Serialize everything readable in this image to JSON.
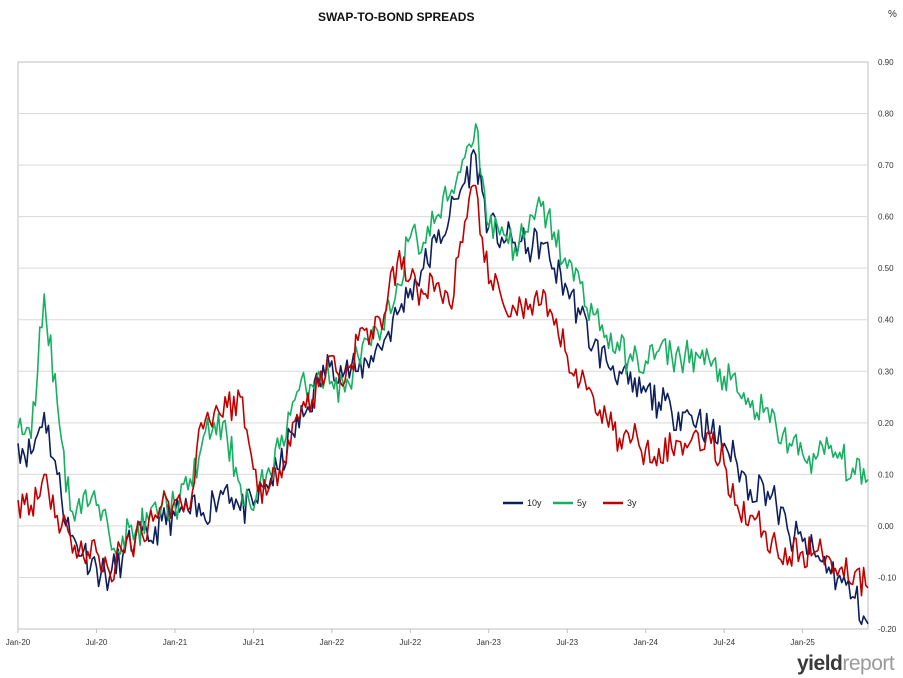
{
  "chart_data": {
    "type": "line",
    "title": "SWAP-TO-BOND SPREADS",
    "unit": "%",
    "y_axis_side": "right",
    "ylim": [
      -0.2,
      0.9
    ],
    "y_ticks": [
      "0.90",
      "0.80",
      "0.70",
      "0.60",
      "0.50",
      "0.40",
      "0.30",
      "0.20",
      "0.10",
      "0.00",
      "-0.10",
      "-0.20"
    ],
    "x_ticks": [
      "Jan-20",
      "Jul-20",
      "Jan-21",
      "Jul-21",
      "Jan-22",
      "Jul-22",
      "Jan-23",
      "Jul-23",
      "Jan-24",
      "Jul-24",
      "Jan-25"
    ],
    "xlim": [
      "2020-01",
      "2025-06"
    ],
    "grid": "horizontal",
    "legend_position": "center",
    "x": [
      "2020-01",
      "2020-02",
      "2020-03",
      "2020-04",
      "2020-05",
      "2020-06",
      "2020-07",
      "2020-08",
      "2020-09",
      "2020-10",
      "2020-11",
      "2020-12",
      "2021-01",
      "2021-02",
      "2021-03",
      "2021-04",
      "2021-05",
      "2021-06",
      "2021-07",
      "2021-08",
      "2021-09",
      "2021-10",
      "2021-11",
      "2021-12",
      "2022-01",
      "2022-02",
      "2022-03",
      "2022-04",
      "2022-05",
      "2022-06",
      "2022-07",
      "2022-08",
      "2022-09",
      "2022-10",
      "2022-11",
      "2022-12",
      "2023-01",
      "2023-02",
      "2023-03",
      "2023-04",
      "2023-05",
      "2023-06",
      "2023-07",
      "2023-08",
      "2023-09",
      "2023-10",
      "2023-11",
      "2023-12",
      "2024-01",
      "2024-02",
      "2024-03",
      "2024-04",
      "2024-05",
      "2024-06",
      "2024-07",
      "2024-08",
      "2024-09",
      "2024-10",
      "2024-11",
      "2024-12",
      "2025-01",
      "2025-02",
      "2025-03",
      "2025-04",
      "2025-05",
      "2025-06"
    ],
    "series": [
      {
        "name": "10y",
        "color": "#0d1f5c",
        "values": [
          0.16,
          0.14,
          0.22,
          0.1,
          -0.02,
          -0.05,
          -0.08,
          -0.1,
          -0.06,
          -0.02,
          -0.03,
          0.01,
          0.02,
          0.03,
          0.02,
          0.05,
          0.08,
          0.03,
          0.04,
          0.08,
          0.11,
          0.18,
          0.22,
          0.28,
          0.32,
          0.3,
          0.3,
          0.33,
          0.36,
          0.41,
          0.46,
          0.5,
          0.55,
          0.6,
          0.66,
          0.72,
          0.58,
          0.56,
          0.55,
          0.54,
          0.55,
          0.5,
          0.46,
          0.41,
          0.35,
          0.32,
          0.3,
          0.26,
          0.26,
          0.24,
          0.22,
          0.22,
          0.21,
          0.18,
          0.16,
          0.12,
          0.07,
          0.08,
          0.04,
          -0.02,
          -0.03,
          -0.06,
          -0.08,
          -0.11,
          -0.14,
          -0.19
        ]
      },
      {
        "name": "5y",
        "color": "#17b061",
        "values": [
          0.19,
          0.17,
          0.45,
          0.24,
          0.03,
          0.06,
          0.04,
          -0.02,
          -0.02,
          -0.01,
          0.01,
          0.04,
          0.04,
          0.07,
          0.15,
          0.2,
          0.17,
          0.08,
          0.03,
          0.1,
          0.15,
          0.24,
          0.27,
          0.3,
          0.28,
          0.26,
          0.33,
          0.35,
          0.38,
          0.47,
          0.56,
          0.55,
          0.6,
          0.64,
          0.71,
          0.78,
          0.58,
          0.58,
          0.54,
          0.57,
          0.62,
          0.57,
          0.5,
          0.47,
          0.41,
          0.37,
          0.34,
          0.32,
          0.32,
          0.34,
          0.33,
          0.33,
          0.33,
          0.31,
          0.29,
          0.26,
          0.23,
          0.22,
          0.19,
          0.16,
          0.14,
          0.13,
          0.15,
          0.13,
          0.1,
          0.09
        ]
      },
      {
        "name": "3y",
        "color": "#c00000",
        "values": [
          0.05,
          0.04,
          0.1,
          0.02,
          -0.02,
          -0.06,
          -0.05,
          -0.09,
          -0.05,
          -0.02,
          0.01,
          0.04,
          0.05,
          0.03,
          0.2,
          0.22,
          0.23,
          0.25,
          0.11,
          0.06,
          0.11,
          0.2,
          0.23,
          0.27,
          0.33,
          0.28,
          0.36,
          0.38,
          0.41,
          0.51,
          0.48,
          0.45,
          0.47,
          0.43,
          0.55,
          0.66,
          0.47,
          0.44,
          0.42,
          0.42,
          0.43,
          0.39,
          0.33,
          0.28,
          0.25,
          0.21,
          0.17,
          0.17,
          0.15,
          0.15,
          0.15,
          0.16,
          0.18,
          0.16,
          0.12,
          0.04,
          0.02,
          -0.01,
          -0.04,
          -0.06,
          -0.05,
          -0.05,
          -0.06,
          -0.08,
          -0.09,
          -0.12
        ]
      }
    ]
  },
  "branding": {
    "logo_part1": "yield",
    "logo_part2": "report"
  }
}
